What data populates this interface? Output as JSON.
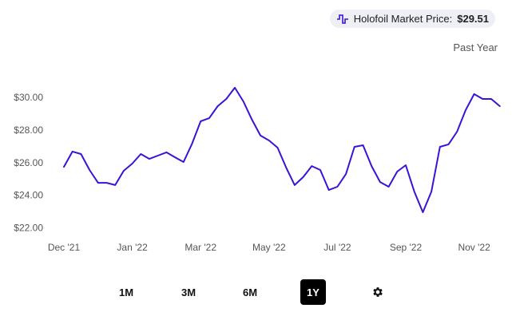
{
  "chart_data": {
    "type": "line",
    "subtitle": "Past Year",
    "current_price_label": "$29.51",
    "categories": [
      "Dec '21",
      null,
      null,
      null,
      null,
      null,
      null,
      null,
      "Jan '22",
      null,
      null,
      null,
      null,
      null,
      null,
      null,
      "Mar '22",
      null,
      null,
      null,
      null,
      null,
      null,
      null,
      "May '22",
      null,
      null,
      null,
      null,
      null,
      null,
      null,
      "Jul '22",
      null,
      null,
      null,
      null,
      null,
      null,
      null,
      "Sep '22",
      null,
      null,
      null,
      null,
      null,
      null,
      null,
      "Nov '22",
      null,
      null,
      null
    ],
    "series": [
      {
        "name": "Holofoil Market Price:",
        "color": "#3b12d6",
        "values": [
          25.78,
          26.72,
          26.57,
          25.59,
          24.8,
          24.8,
          24.66,
          25.54,
          25.98,
          26.57,
          26.27,
          26.47,
          26.67,
          26.37,
          26.08,
          27.21,
          28.58,
          28.77,
          29.51,
          29.95,
          30.64,
          29.8,
          28.68,
          27.7,
          27.4,
          26.96,
          25.74,
          24.66,
          25.15,
          25.83,
          25.59,
          24.36,
          24.56,
          25.34,
          27.01,
          27.11,
          25.83,
          24.85,
          24.56,
          25.49,
          25.88,
          24.26,
          22.99,
          24.26,
          27.01,
          27.16,
          27.94,
          29.26,
          30.25,
          29.95,
          29.95,
          29.51
        ]
      }
    ],
    "ylim": [
      21.5,
      31
    ],
    "yticks": [
      {
        "value": 22,
        "label": "$22.00"
      },
      {
        "value": 24,
        "label": "$24.00"
      },
      {
        "value": 26,
        "label": "$26.00"
      },
      {
        "value": 28,
        "label": "$28.00"
      },
      {
        "value": 30,
        "label": "$30.00"
      }
    ],
    "grid": false
  },
  "controls": {
    "ranges": [
      "1M",
      "3M",
      "6M",
      "1Y"
    ],
    "selected": "1Y"
  }
}
